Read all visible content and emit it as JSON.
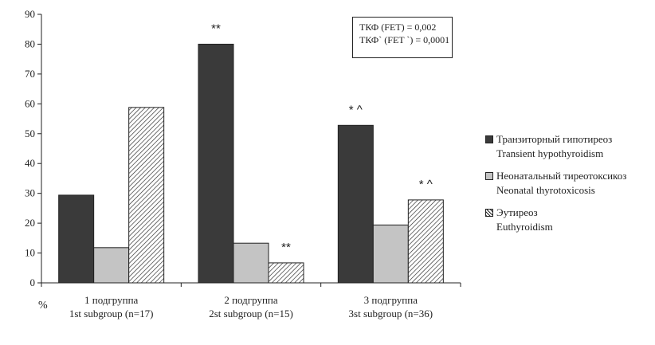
{
  "chart_data": {
    "type": "bar",
    "ylim": [
      0,
      90
    ],
    "yticks": [
      0,
      10,
      20,
      30,
      40,
      50,
      60,
      70,
      80,
      90
    ],
    "ylabel": "%",
    "categories": [
      [
        "1 подгруппа",
        "1st subgroup (n=17)"
      ],
      [
        "2 подгруппа",
        "2st subgroup  (n=15)"
      ],
      [
        "3 подгруппа",
        "3st subgroup (n=36)"
      ]
    ],
    "series": [
      {
        "name": "Транзиторный гипотиреоз / Transient hypothyroidism",
        "values": [
          29.4,
          80,
          52.8
        ],
        "color": "#3a3a3a",
        "pattern": "solid-dark"
      },
      {
        "name": "Неонатальный тиреотоксикоз / Neonatal thyrotoxicosis",
        "values": [
          11.8,
          13.3,
          19.4
        ],
        "color": "#c4c4c4",
        "pattern": "solid-light"
      },
      {
        "name": "Эутиреоз / Euthyroidism",
        "values": [
          58.8,
          6.7,
          27.8
        ],
        "color": "#ffffff",
        "pattern": "diagonal-hatch"
      }
    ],
    "annotations": [
      {
        "category": 1,
        "series": 0,
        "text": "**"
      },
      {
        "category": 1,
        "series": 2,
        "text": "**"
      },
      {
        "category": 2,
        "series": 0,
        "text": "* ^"
      },
      {
        "category": 2,
        "series": 2,
        "text": "* ^"
      }
    ],
    "legend": [
      {
        "ru": "Транзиторный гипотиреоз",
        "en": "Transient hypothyroidism"
      },
      {
        "ru": "Неонатальный тиреотоксикоз",
        "en": "Neonatal thyrotoxicosis"
      },
      {
        "ru": "Эутиреоз",
        "en": "Euthyroidism"
      }
    ],
    "legend_position": "right",
    "grid": false,
    "stats_box": [
      "ТКФ (FET) = 0,002",
      "ТКФ` (FET `) = 0,0001"
    ]
  }
}
